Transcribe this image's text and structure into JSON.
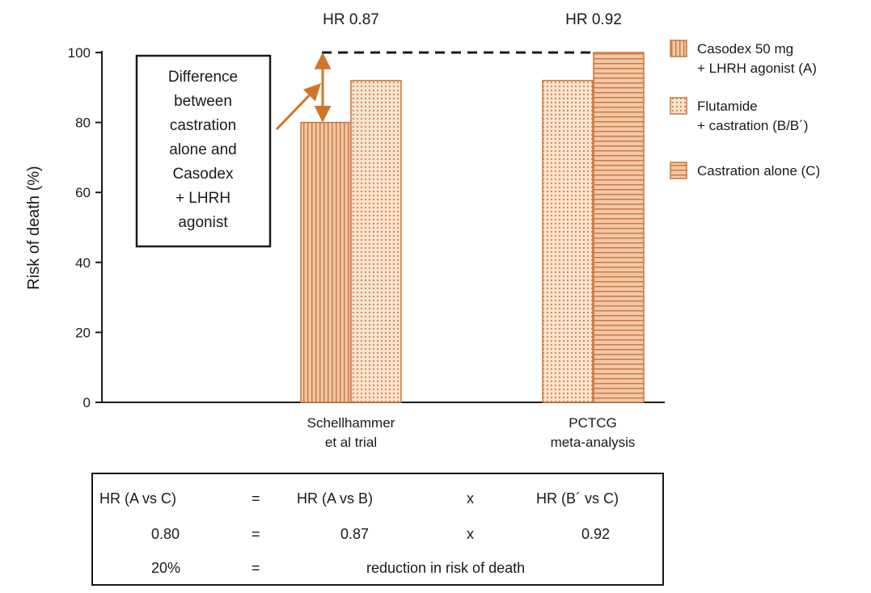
{
  "chart_data": {
    "type": "bar",
    "categories": [
      [
        "Schellhammer",
        "et al trial"
      ],
      [
        "PCTCG",
        "meta-analysis"
      ]
    ],
    "ylabel": "Risk of death (%)",
    "xlabel": "",
    "ylim": [
      0,
      100
    ],
    "yticks": [
      "0",
      "20",
      "40",
      "60",
      "80",
      "100"
    ],
    "series": [
      {
        "name": [
          "Casodex 50 mg",
          "+ LHRH agonist (A)"
        ],
        "values": [
          80,
          null
        ],
        "pattern": "vertical"
      },
      {
        "name": [
          "Flutamide",
          "+ castration (B/B´)"
        ],
        "values": [
          92,
          92
        ],
        "pattern": "dots"
      },
      {
        "name": [
          "Castration alone (C)"
        ],
        "values": [
          null,
          100
        ],
        "pattern": "horizontal"
      }
    ],
    "hr_labels": [
      "HR 0.87",
      "HR 0.92"
    ],
    "annotation": [
      "Difference",
      "between",
      "castration",
      "alone and",
      "Casodex",
      "+ LHRH",
      "agonist"
    ],
    "colors": {
      "bar_fill": "#f2c7a5",
      "pattern": "#c8763d",
      "arrow": "#d0742a",
      "ink": "#1a1a1a"
    },
    "legend_position": "right"
  },
  "formula": {
    "row1": {
      "lhs": "HR (A vs C)",
      "eq": "=",
      "t1": "HR (A vs B)",
      "op": "x",
      "t2": "HR (B´ vs C)"
    },
    "row2": {
      "lhs": "0.80",
      "eq": "=",
      "t1": "0.87",
      "op": "x",
      "t2": "0.92"
    },
    "row3": {
      "lhs": "20%",
      "eq": "=",
      "text": "reduction in risk of death"
    }
  }
}
